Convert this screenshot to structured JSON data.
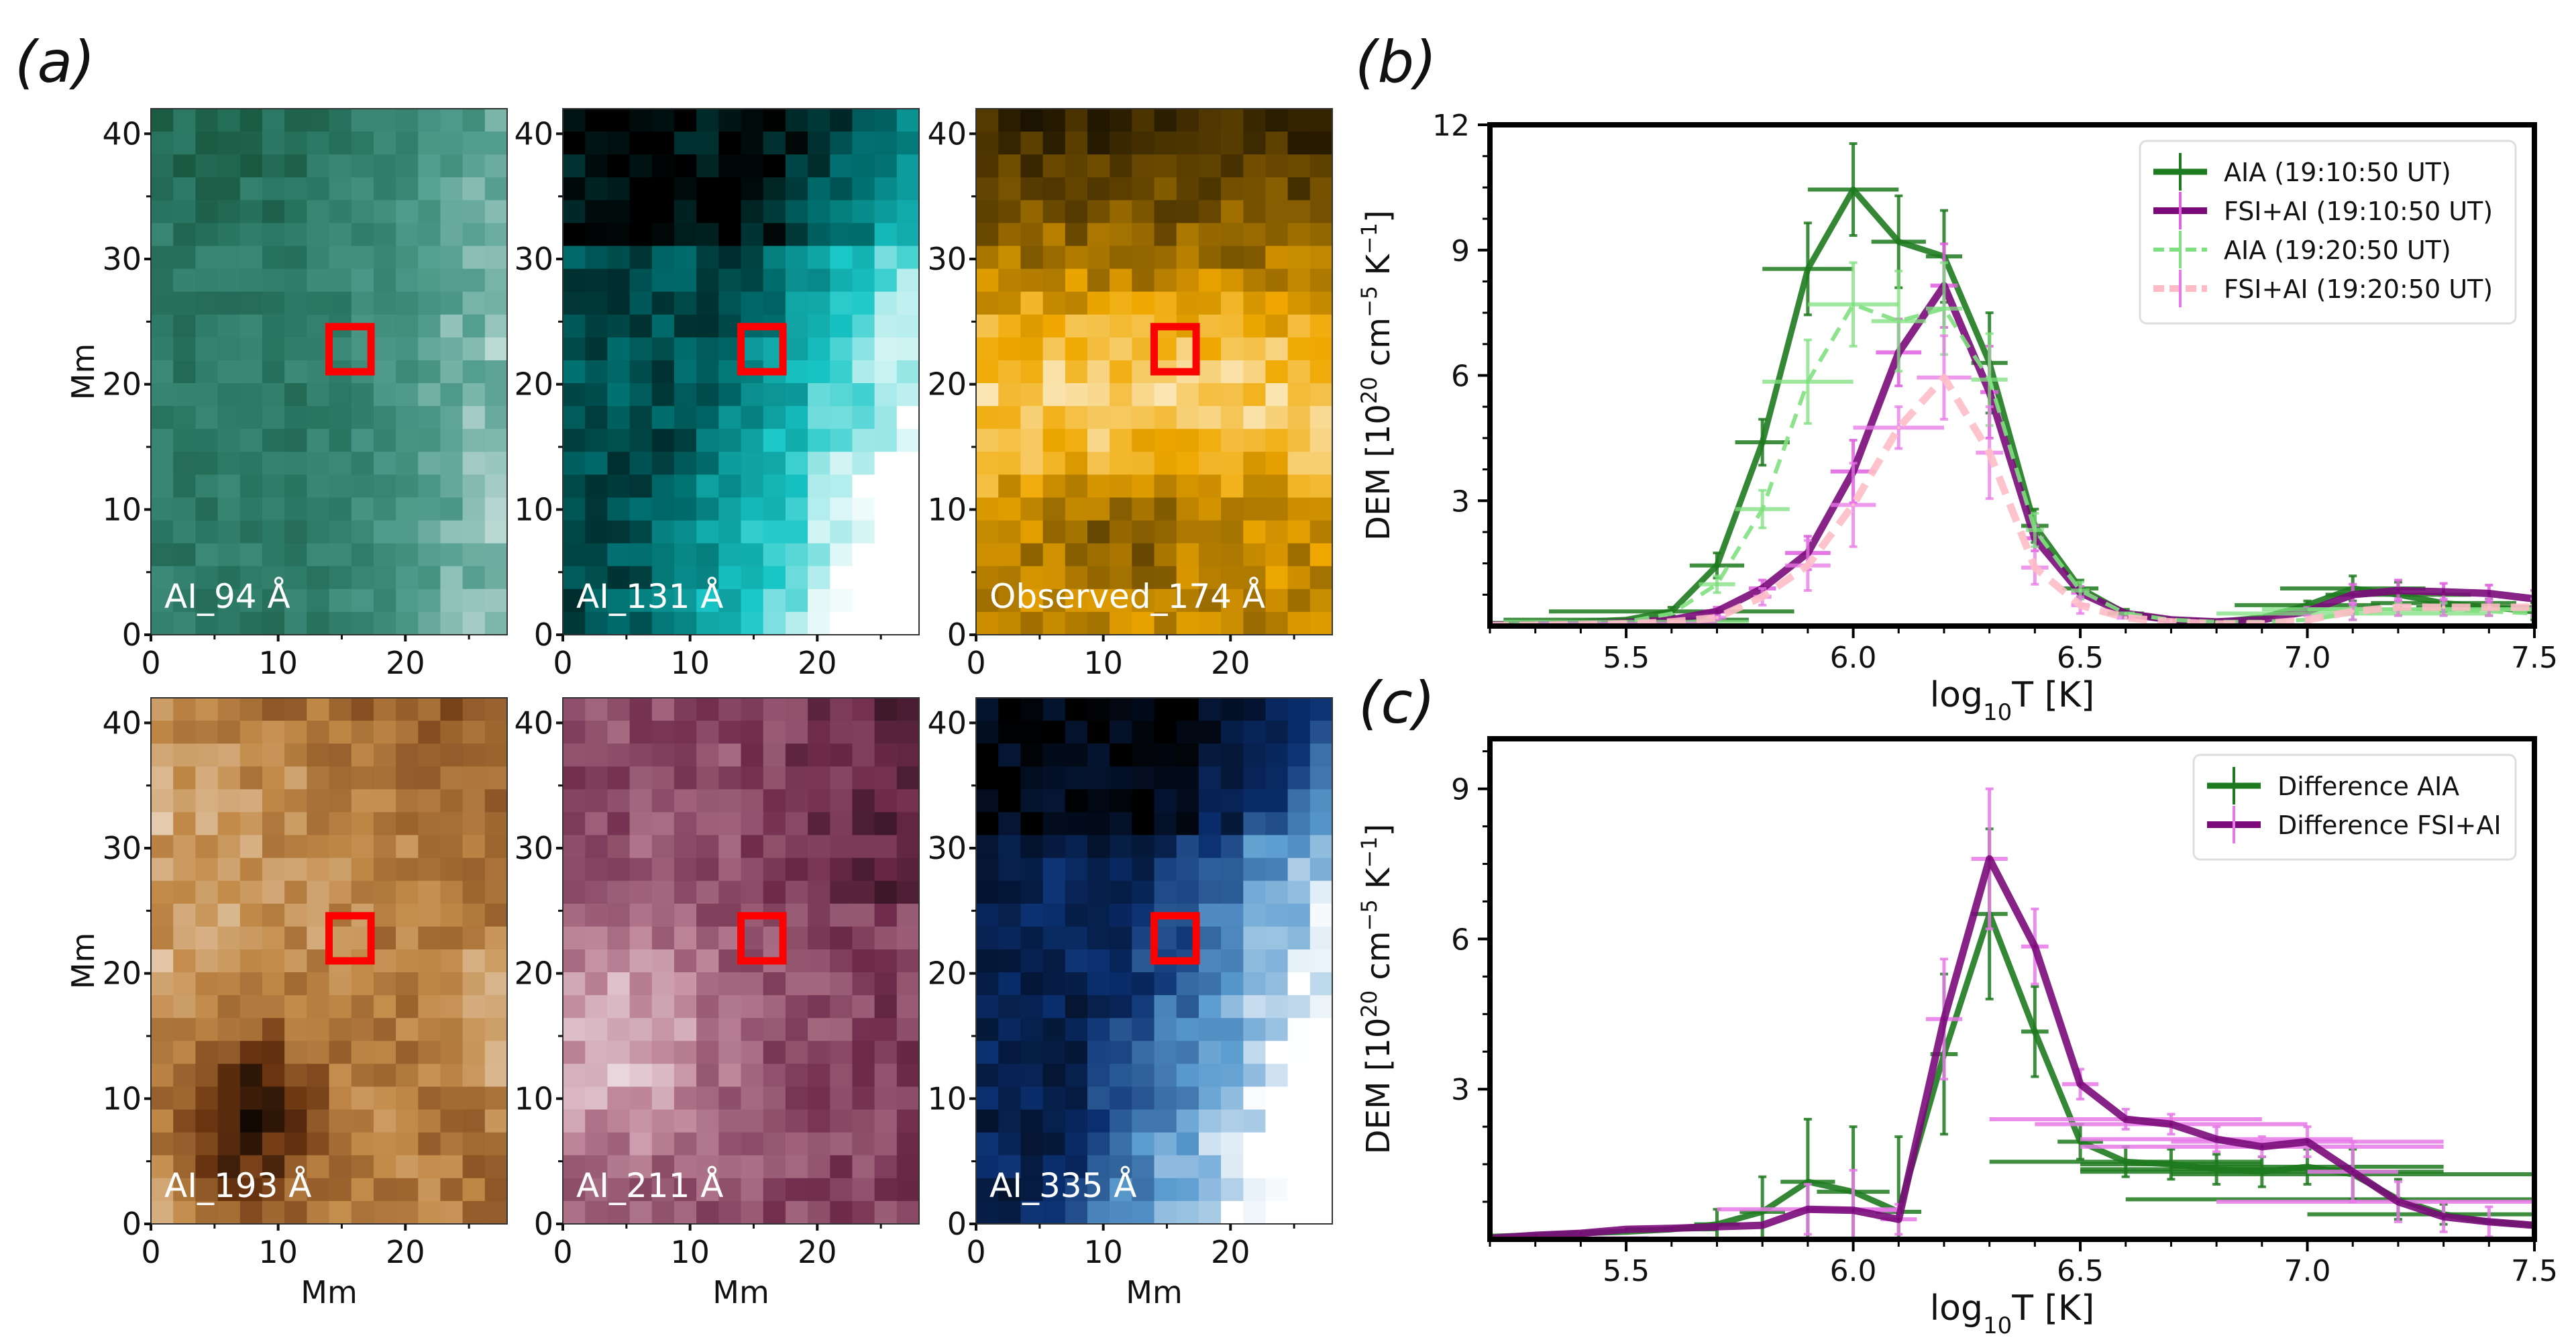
{
  "panel_labels": {
    "a": "(a)",
    "b": "(b)",
    "c": "(c)"
  },
  "image_panels": {
    "xlabel": "Mm",
    "ylabel": "Mm",
    "xticks": [
      "0",
      "10",
      "20"
    ],
    "yticks": [
      "0",
      "10",
      "20",
      "30",
      "40"
    ],
    "extent_mm": {
      "x": [
        0,
        28
      ],
      "y": [
        0,
        42
      ]
    },
    "grid_cells": {
      "cols": 16,
      "rows": 23
    },
    "highlight_box_mm": {
      "x": [
        14,
        17.3
      ],
      "y": [
        21,
        24.6
      ]
    },
    "highlight_color": "#ff0000",
    "panels": [
      {
        "id": "ai94",
        "caption": "AI_94 Å",
        "colormap": [
          "#0a3d22",
          "#2c7a66",
          "#5aa395",
          "#ffffff"
        ],
        "seed": 3,
        "pattern": "east-bright"
      },
      {
        "id": "ai131",
        "caption": "AI_131 Å",
        "colormap": [
          "#000000",
          "#006a6a",
          "#19c7c7",
          "#ffffff"
        ],
        "seed": 7,
        "pattern": "diag-bright"
      },
      {
        "id": "obs174",
        "caption": "Observed_174 Å",
        "colormap": [
          "#000000",
          "#6b4a00",
          "#f0a800",
          "#ffffff"
        ],
        "seed": 11,
        "pattern": "middle-bright"
      },
      {
        "id": "ai193",
        "caption": "AI_193 Å",
        "colormap": [
          "#000000",
          "#6a3410",
          "#c28a48",
          "#ffffff"
        ],
        "seed": 5,
        "pattern": "sw-dark"
      },
      {
        "id": "ai211",
        "caption": "AI_211 Å",
        "colormap": [
          "#000000",
          "#6e2b4a",
          "#c0889b",
          "#ffffff"
        ],
        "seed": 13,
        "pattern": "west-bright"
      },
      {
        "id": "ai335",
        "caption": "AI_335 Å",
        "colormap": [
          "#000000",
          "#0a2e6e",
          "#5b9ccf",
          "#ffffff"
        ],
        "seed": 17,
        "pattern": "diag-bright"
      }
    ]
  },
  "chart_data": [
    {
      "id": "b",
      "type": "line",
      "title": "",
      "xlabel": "log10T [K]",
      "ylabel": "DEM [10^20 cm^-5 K^-1]",
      "xlim": [
        5.2,
        7.5
      ],
      "ylim": [
        0,
        12
      ],
      "xticks": [
        5.5,
        6.0,
        6.5,
        7.0,
        7.5
      ],
      "xtick_labels": [
        "5.5",
        "6.0",
        "6.5",
        "7.0",
        "7.5"
      ],
      "yticks": [
        3,
        6,
        9,
        12
      ],
      "ytick_labels": [
        "3",
        "6",
        "9",
        "12"
      ],
      "grid": false,
      "legend_position": "top-right",
      "x": [
        5.2,
        5.3,
        5.4,
        5.5,
        5.6,
        5.7,
        5.8,
        5.9,
        6.0,
        6.1,
        6.2,
        6.3,
        6.4,
        6.5,
        6.6,
        6.7,
        6.8,
        6.9,
        7.0,
        7.1,
        7.2,
        7.3,
        7.4,
        7.5
      ],
      "series": [
        {
          "name": "AIA (19:10:50 UT)",
          "color": "#1e7a1e",
          "err_color": "#1e7a1e",
          "style": "solid",
          "width": 9,
          "values": [
            0.05,
            0.05,
            0.1,
            0.15,
            0.35,
            1.45,
            4.4,
            8.55,
            10.45,
            9.2,
            8.85,
            6.3,
            2.4,
            0.9,
            0.3,
            0.15,
            0.1,
            0.2,
            0.5,
            0.9,
            0.75,
            0.55,
            0.45,
            0.35
          ],
          "yerr": [
            0,
            0,
            0,
            0,
            0.1,
            0.3,
            0.55,
            1.1,
            1.1,
            1.1,
            1.1,
            1.2,
            0.4,
            0.2,
            0.1,
            0,
            0,
            0,
            0.1,
            0.3,
            0.3,
            0.2,
            0.2,
            0.2
          ],
          "xerr": [
            0,
            0,
            0,
            0.27,
            0.27,
            0.06,
            0.06,
            0.1,
            0.1,
            0.06,
            0.04,
            0.04,
            0.03,
            0.04,
            0.04,
            0,
            0,
            0,
            0.16,
            0.16,
            0.16,
            0.16,
            0.16,
            0
          ]
        },
        {
          "name": "FSI+AI (19:10:50 UT)",
          "color": "#7a0a7a",
          "err_color": "#e060e0",
          "style": "solid",
          "width": 11,
          "values": [
            0.02,
            0.03,
            0.05,
            0.08,
            0.15,
            0.35,
            0.9,
            1.75,
            3.7,
            6.55,
            8.15,
            5.6,
            2.1,
            0.8,
            0.3,
            0.15,
            0.1,
            0.15,
            0.35,
            0.75,
            0.85,
            0.82,
            0.78,
            0.65
          ],
          "yerr": [
            0,
            0,
            0,
            0,
            0,
            0.1,
            0.2,
            0.4,
            0.75,
            0.8,
            1.0,
            1.1,
            0.3,
            0.15,
            0,
            0,
            0,
            0,
            0.1,
            0.25,
            0.25,
            0.2,
            0.2,
            0.2
          ],
          "xerr": [
            0,
            0,
            0,
            0.2,
            0,
            0.03,
            0.03,
            0.05,
            0.05,
            0.05,
            0.03,
            0.02,
            0.02,
            0.02,
            0.02,
            0,
            0,
            0,
            0,
            0,
            0,
            0,
            0,
            0
          ]
        },
        {
          "name": "AIA (19:20:50 UT)",
          "color": "#7fe07f",
          "err_color": "#7fe07f",
          "style": "dashed",
          "width": 6,
          "values": [
            0.02,
            0.03,
            0.05,
            0.1,
            0.3,
            1.0,
            2.8,
            5.85,
            7.7,
            7.3,
            7.6,
            5.9,
            2.3,
            0.85,
            0.3,
            0.15,
            0.1,
            0.1,
            0.15,
            0.3,
            0.4,
            0.4,
            0.35,
            0.3
          ],
          "yerr": [
            0,
            0,
            0,
            0,
            0,
            0.2,
            0.45,
            1.0,
            1.0,
            1.2,
            1.1,
            1.1,
            0.4,
            0.2,
            0,
            0,
            0,
            0,
            0,
            0.15,
            0.15,
            0.15,
            0.1,
            0.1
          ],
          "xerr": [
            0,
            0,
            0,
            0.27,
            0,
            0.04,
            0.06,
            0.1,
            0.1,
            0.06,
            0.04,
            0.04,
            0.02,
            0.02,
            0.02,
            0,
            0,
            0,
            0,
            0.3,
            0.3,
            0.3,
            0,
            0
          ]
        },
        {
          "name": "FSI+AI (19:20:50 UT)",
          "color": "#ffbcc6",
          "err_color": "#e879e8",
          "style": "dashed",
          "width": 11,
          "values": [
            0.01,
            0.02,
            0.03,
            0.05,
            0.1,
            0.2,
            0.7,
            1.45,
            2.9,
            4.75,
            5.95,
            4.15,
            1.4,
            0.5,
            0.2,
            0.1,
            0.05,
            0.05,
            0.15,
            0.35,
            0.45,
            0.45,
            0.45,
            0.45
          ],
          "yerr": [
            0,
            0,
            0,
            0,
            0,
            0.05,
            0.2,
            0.6,
            1.0,
            0.5,
            1.0,
            1.1,
            0.4,
            0.2,
            0,
            0,
            0,
            0,
            0.1,
            0.2,
            0.2,
            0.2,
            0.2,
            0.2
          ],
          "xerr": [
            0,
            0,
            0,
            0.2,
            0,
            0.02,
            0.02,
            0.05,
            0.05,
            0.1,
            0.06,
            0.03,
            0.03,
            0.02,
            0.02,
            0,
            0,
            0,
            0,
            0,
            0,
            0,
            0,
            0
          ]
        }
      ]
    },
    {
      "id": "c",
      "type": "line",
      "title": "",
      "xlabel": "log10T [K]",
      "ylabel": "DEM [10^20 cm^-5 K^-1]",
      "xlim": [
        5.2,
        7.5
      ],
      "ylim": [
        0,
        10
      ],
      "xticks": [
        5.5,
        6.0,
        6.5,
        7.0,
        7.5
      ],
      "xtick_labels": [
        "5.5",
        "6.0",
        "6.5",
        "7.0",
        "7.5"
      ],
      "yticks": [
        3,
        6,
        9
      ],
      "ytick_labels": [
        "3",
        "6",
        "9"
      ],
      "grid": false,
      "legend_position": "top-right",
      "x": [
        5.2,
        5.3,
        5.4,
        5.5,
        5.6,
        5.7,
        5.8,
        5.9,
        6.0,
        6.1,
        6.2,
        6.3,
        6.4,
        6.5,
        6.6,
        6.7,
        6.8,
        6.9,
        7.0,
        7.1,
        7.2,
        7.3,
        7.4,
        7.5
      ],
      "series": [
        {
          "name": "Difference AIA",
          "color": "#1e7a1e",
          "err_color": "#1e7a1e",
          "style": "solid",
          "width": 9,
          "values": [
            0.05,
            0.08,
            0.12,
            0.15,
            0.2,
            0.3,
            0.55,
            1.15,
            0.95,
            0.55,
            3.7,
            6.5,
            4.15,
            1.95,
            1.55,
            1.5,
            1.4,
            1.35,
            1.45,
            1.3,
            0.8,
            0.5,
            0.35,
            0.28
          ],
          "yerr": [
            0,
            0,
            0,
            0,
            0,
            0.3,
            0.7,
            1.25,
            1.3,
            1.5,
            1.6,
            1.7,
            0.9,
            0.35,
            0.3,
            0.3,
            0.3,
            0.3,
            0.35,
            0.5,
            0.4,
            0.2,
            0,
            0
          ],
          "xerr": [
            0,
            0,
            0,
            0,
            0.1,
            0.05,
            0.05,
            0.06,
            0.08,
            0.05,
            0.03,
            0.04,
            0.03,
            0.05,
            0.3,
            0.2,
            0.3,
            0.4,
            0.3,
            0.4,
            0.6,
            0.3,
            0,
            0
          ]
        },
        {
          "name": "Difference FSI+AI",
          "color": "#7a0a7a",
          "err_color": "#e87ae8",
          "style": "solid",
          "width": 11,
          "values": [
            0.02,
            0.08,
            0.12,
            0.2,
            0.22,
            0.25,
            0.28,
            0.6,
            0.58,
            0.4,
            4.4,
            7.6,
            5.85,
            3.1,
            2.4,
            2.3,
            2.0,
            1.85,
            1.95,
            1.35,
            0.75,
            0.45,
            0.35,
            0.28
          ],
          "yerr": [
            0,
            0,
            0,
            0,
            0,
            0,
            0,
            0.5,
            0.8,
            0.3,
            1.2,
            1.4,
            0.75,
            0.3,
            0.2,
            0.2,
            0.25,
            0.2,
            0.3,
            0.6,
            0.4,
            0.3,
            0.3,
            0
          ],
          "xerr": [
            0.35,
            0,
            0,
            0,
            0,
            0,
            0,
            0.2,
            0.1,
            0.04,
            0.04,
            0.04,
            0.03,
            0.04,
            0.3,
            0.3,
            0.3,
            0.4,
            0.3,
            0.1,
            0.4,
            0,
            0,
            0
          ]
        }
      ]
    }
  ]
}
